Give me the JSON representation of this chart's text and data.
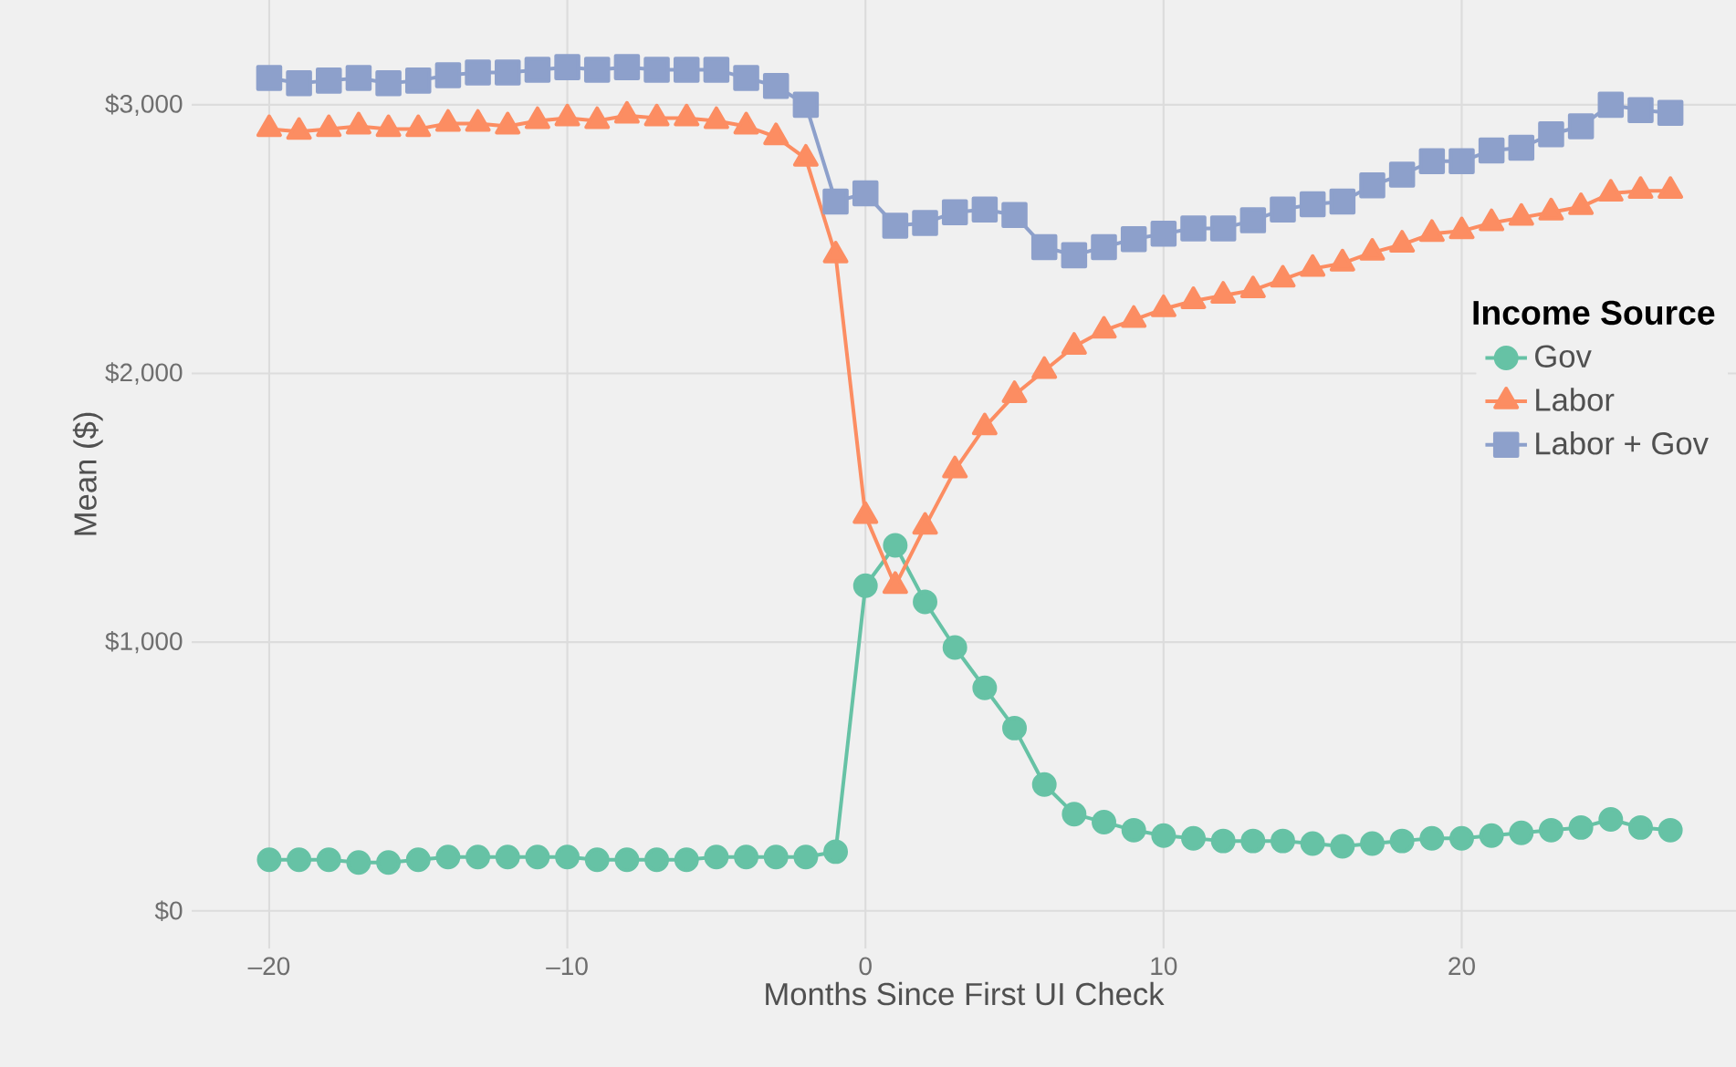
{
  "chart_data": {
    "type": "line",
    "xlabel": "Months Since First UI Check",
    "ylabel": "Mean ($)",
    "legend_title": "Income Source",
    "x": [
      -20,
      -19,
      -18,
      -17,
      -16,
      -15,
      -14,
      -13,
      -12,
      -11,
      -10,
      -9,
      -8,
      -7,
      -6,
      -5,
      -4,
      -3,
      -2,
      -1,
      0,
      1,
      2,
      3,
      4,
      5,
      6,
      7,
      8,
      9,
      10,
      11,
      12,
      13,
      14,
      15,
      16,
      17,
      18,
      19,
      20,
      21,
      22,
      23,
      24,
      25,
      26,
      27
    ],
    "series": [
      {
        "name": "Gov",
        "color": "#66c2a5",
        "marker": "circle",
        "values": [
          190,
          190,
          190,
          180,
          180,
          190,
          200,
          200,
          200,
          200,
          200,
          190,
          190,
          190,
          190,
          200,
          200,
          200,
          200,
          220,
          1210,
          1360,
          1150,
          980,
          830,
          680,
          470,
          360,
          330,
          300,
          280,
          270,
          260,
          260,
          260,
          250,
          240,
          250,
          260,
          270,
          270,
          280,
          290,
          300,
          310,
          340,
          310,
          300
        ]
      },
      {
        "name": "Labor",
        "color": "#fc8d62",
        "marker": "triangle",
        "values": [
          2910,
          2900,
          2910,
          2920,
          2910,
          2910,
          2930,
          2930,
          2920,
          2940,
          2950,
          2940,
          2960,
          2950,
          2950,
          2940,
          2920,
          2880,
          2800,
          2440,
          1470,
          1210,
          1430,
          1640,
          1800,
          1920,
          2010,
          2100,
          2160,
          2200,
          2240,
          2270,
          2290,
          2310,
          2350,
          2390,
          2410,
          2450,
          2480,
          2520,
          2530,
          2560,
          2580,
          2600,
          2620,
          2670,
          2680,
          2680
        ]
      },
      {
        "name": "Labor + Gov",
        "color": "#8da0cb",
        "marker": "square",
        "values": [
          3100,
          3080,
          3090,
          3100,
          3080,
          3090,
          3110,
          3120,
          3120,
          3130,
          3140,
          3130,
          3140,
          3130,
          3130,
          3130,
          3100,
          3070,
          3000,
          2640,
          2670,
          2550,
          2560,
          2600,
          2610,
          2590,
          2470,
          2440,
          2470,
          2500,
          2520,
          2540,
          2540,
          2570,
          2610,
          2630,
          2640,
          2700,
          2740,
          2790,
          2790,
          2830,
          2840,
          2890,
          2920,
          3000,
          2980,
          2970
        ]
      }
    ],
    "xlim": [
      -22.6,
      29.2
    ],
    "ylim": [
      -140,
      3390
    ],
    "xticks": [
      {
        "value": -20,
        "label": "–20"
      },
      {
        "value": -10,
        "label": "–10"
      },
      0,
      10,
      20
    ],
    "yticks": [
      {
        "value": 0,
        "label": "$0"
      },
      {
        "value": 1000,
        "label": "$1,000"
      },
      {
        "value": 2000,
        "label": "$2,000"
      },
      {
        "value": 3000,
        "label": "$3,000"
      }
    ],
    "grid": true,
    "legend": "right"
  }
}
